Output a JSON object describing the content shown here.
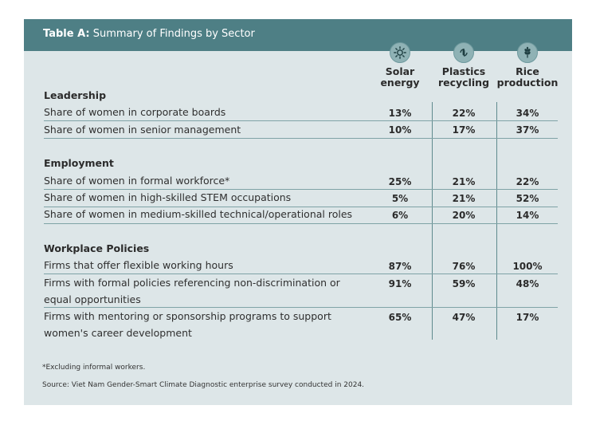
{
  "title": {
    "bold": "Table A:",
    "rest": " Summary of Findings by Sector"
  },
  "columns": [
    {
      "line1": "Solar",
      "line2": "energy",
      "icon": "sun-icon"
    },
    {
      "line1": "Plastics",
      "line2": "recycling",
      "icon": "recycle-bottle-icon"
    },
    {
      "line1": "Rice",
      "line2": "production",
      "icon": "rice-grain-icon"
    }
  ],
  "sections": [
    {
      "name": "Leadership",
      "rows": [
        {
          "label": "Share of women in corporate boards",
          "values": [
            "13%",
            "22%",
            "34%"
          ]
        },
        {
          "label": "Share of women in senior management",
          "values": [
            "10%",
            "17%",
            "37%"
          ]
        }
      ]
    },
    {
      "name": "Employment",
      "rows": [
        {
          "label": "Share of women in formal workforce*",
          "values": [
            "25%",
            "21%",
            "22%"
          ]
        },
        {
          "label": "Share of women in high-skilled STEM occupations",
          "values": [
            "5%",
            "21%",
            "52%"
          ]
        },
        {
          "label": "Share of women in medium-skilled technical/operational roles",
          "values": [
            "6%",
            "20%",
            "14%"
          ]
        }
      ]
    },
    {
      "name": "Workplace Policies",
      "rows": [
        {
          "label": "Firms that offer flexible working hours",
          "values": [
            "87%",
            "76%",
            "100%"
          ]
        },
        {
          "label_line1": "Firms with formal policies referencing non-discrimination or",
          "label_line2": "equal opportunities",
          "values": [
            "91%",
            "59%",
            "48%"
          ]
        },
        {
          "label_line1": "Firms with mentoring or sponsorship programs to support",
          "label_line2": "women's career development",
          "values": [
            "65%",
            "47%",
            "17%"
          ]
        }
      ]
    }
  ],
  "footnote": "*Excluding informal workers.",
  "source": "Source: Viet Nam Gender-Smart Climate Diagnostic enterprise survey conducted in 2024.",
  "colors": {
    "header_bg": "#4e7f85",
    "panel_bg": "#dde6e8",
    "rule": "#7fa3a6"
  }
}
